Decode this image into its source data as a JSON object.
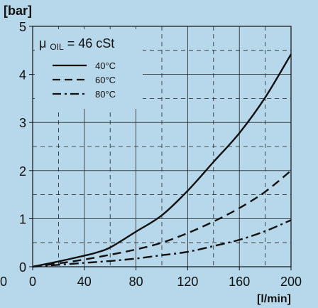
{
  "chart_data": {
    "type": "line",
    "ylabel": "[bar]",
    "xlabel": "[l/min]",
    "xlim": [
      0,
      200
    ],
    "ylim": [
      0,
      5
    ],
    "grid": true,
    "x_ticks": [
      {
        "value": 0,
        "label": "0"
      },
      {
        "value": 40,
        "label": "40"
      },
      {
        "value": 80,
        "label": "80"
      },
      {
        "value": 120,
        "label": "120"
      },
      {
        "value": 160,
        "label": "160"
      },
      {
        "value": 200,
        "label": "200"
      }
    ],
    "x_minor_gridlines": [
      20,
      60,
      100,
      140,
      180
    ],
    "y_ticks": [
      {
        "value": 0,
        "label": "0"
      },
      {
        "value": 1,
        "label": "1"
      },
      {
        "value": 2,
        "label": "2"
      },
      {
        "value": 3,
        "label": "3"
      },
      {
        "value": 4,
        "label": "4"
      },
      {
        "value": 5,
        "label": "5"
      }
    ],
    "y_minor_gridlines": [
      0.5,
      1.5,
      2.5,
      3.5,
      4.5
    ],
    "extra_origin_label": "0",
    "legend": {
      "placement": "top-left",
      "title_prefix": "μ",
      "title_subscript": "OIL",
      "title_suffix": " = 46 cSt"
    },
    "series": [
      {
        "name": "40°C",
        "style": "solid",
        "color": "#111111",
        "x": [
          0,
          20,
          40,
          50,
          60,
          80,
          100,
          120,
          140,
          160,
          180,
          200
        ],
        "y": [
          0,
          0.11,
          0.23,
          0.3,
          0.4,
          0.73,
          1.07,
          1.58,
          2.18,
          2.78,
          3.52,
          4.42
        ]
      },
      {
        "name": "60°C",
        "style": "dashed",
        "color": "#111111",
        "x": [
          0,
          20,
          40,
          60,
          80,
          100,
          120,
          140,
          160,
          180,
          200
        ],
        "y": [
          0,
          0.07,
          0.15,
          0.25,
          0.36,
          0.5,
          0.7,
          0.94,
          1.22,
          1.56,
          2.0
        ]
      },
      {
        "name": "80°C",
        "style": "dashdot",
        "color": "#111111",
        "x": [
          0,
          20,
          40,
          60,
          80,
          100,
          120,
          140,
          160,
          180,
          200
        ],
        "y": [
          0,
          0.04,
          0.08,
          0.12,
          0.17,
          0.24,
          0.31,
          0.43,
          0.56,
          0.74,
          0.97
        ]
      }
    ]
  }
}
